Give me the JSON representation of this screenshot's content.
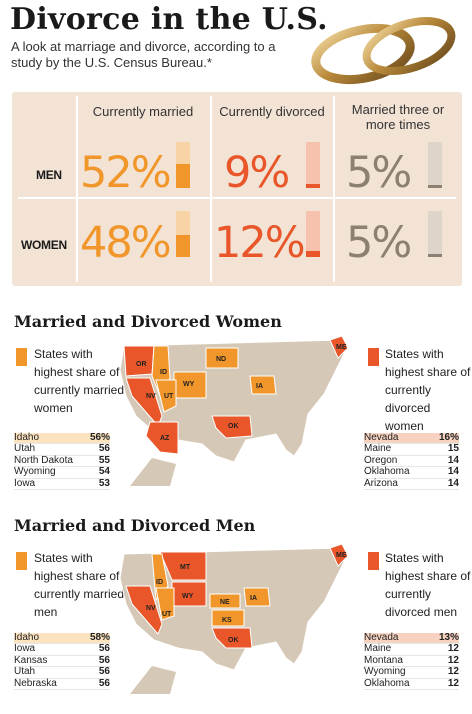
{
  "title": "Divorce in the U.S.",
  "subtitle": "A look at marriage and divorce, according to a study by the U.S. Census Bureau.*",
  "colors": {
    "married": "#f0962a",
    "divorced": "#e8562a",
    "three_times": "#8b8072",
    "panel_bg": "#f3e3d5",
    "map_land": "#d6c8b6"
  },
  "chart_data": [
    {
      "type": "table",
      "columns": [
        "Currently married",
        "Currently divorced",
        "Married three or more times"
      ],
      "rows": [
        {
          "label": "MEN",
          "values": [
            "52%",
            "9%",
            "5%"
          ],
          "numeric": [
            52,
            9,
            5
          ]
        },
        {
          "label": "WOMEN",
          "values": [
            "48%",
            "12%",
            "5%"
          ],
          "numeric": [
            48,
            12,
            5
          ]
        }
      ]
    },
    {
      "type": "table",
      "title": "Married and Divorced Women",
      "married_legend": "States with highest share of currently married women",
      "divorced_legend": "States with highest share of currently divorced women",
      "married": [
        {
          "state": "Idaho",
          "value": "56%"
        },
        {
          "state": "Utah",
          "value": "56"
        },
        {
          "state": "North Dakota",
          "value": "55"
        },
        {
          "state": "Wyoming",
          "value": "54"
        },
        {
          "state": "Iowa",
          "value": "53"
        }
      ],
      "divorced": [
        {
          "state": "Nevada",
          "value": "16%"
        },
        {
          "state": "Maine",
          "value": "15"
        },
        {
          "state": "Oregon",
          "value": "14"
        },
        {
          "state": "Oklahoma",
          "value": "14"
        },
        {
          "state": "Arizona",
          "value": "14"
        }
      ],
      "map_labels": [
        "ME",
        "OR",
        "ID",
        "ND",
        "WY",
        "IA",
        "NV",
        "UT",
        "OK",
        "AZ"
      ]
    },
    {
      "type": "table",
      "title": "Married and Divorced Men",
      "married_legend": "States with highest share of currently married men",
      "divorced_legend": "States with highest share of currently divorced men",
      "married": [
        {
          "state": "Idaho",
          "value": "58%"
        },
        {
          "state": "Iowa",
          "value": "56"
        },
        {
          "state": "Kansas",
          "value": "56"
        },
        {
          "state": "Utah",
          "value": "56"
        },
        {
          "state": "Nebraska",
          "value": "56"
        }
      ],
      "divorced": [
        {
          "state": "Nevada",
          "value": "13%"
        },
        {
          "state": "Maine",
          "value": "12"
        },
        {
          "state": "Montana",
          "value": "12"
        },
        {
          "state": "Wyoming",
          "value": "12"
        },
        {
          "state": "Oklahoma",
          "value": "12"
        }
      ],
      "map_labels": [
        "ME",
        "MT",
        "ID",
        "WY",
        "NE",
        "IA",
        "NV",
        "UT",
        "KS",
        "OK"
      ]
    }
  ]
}
